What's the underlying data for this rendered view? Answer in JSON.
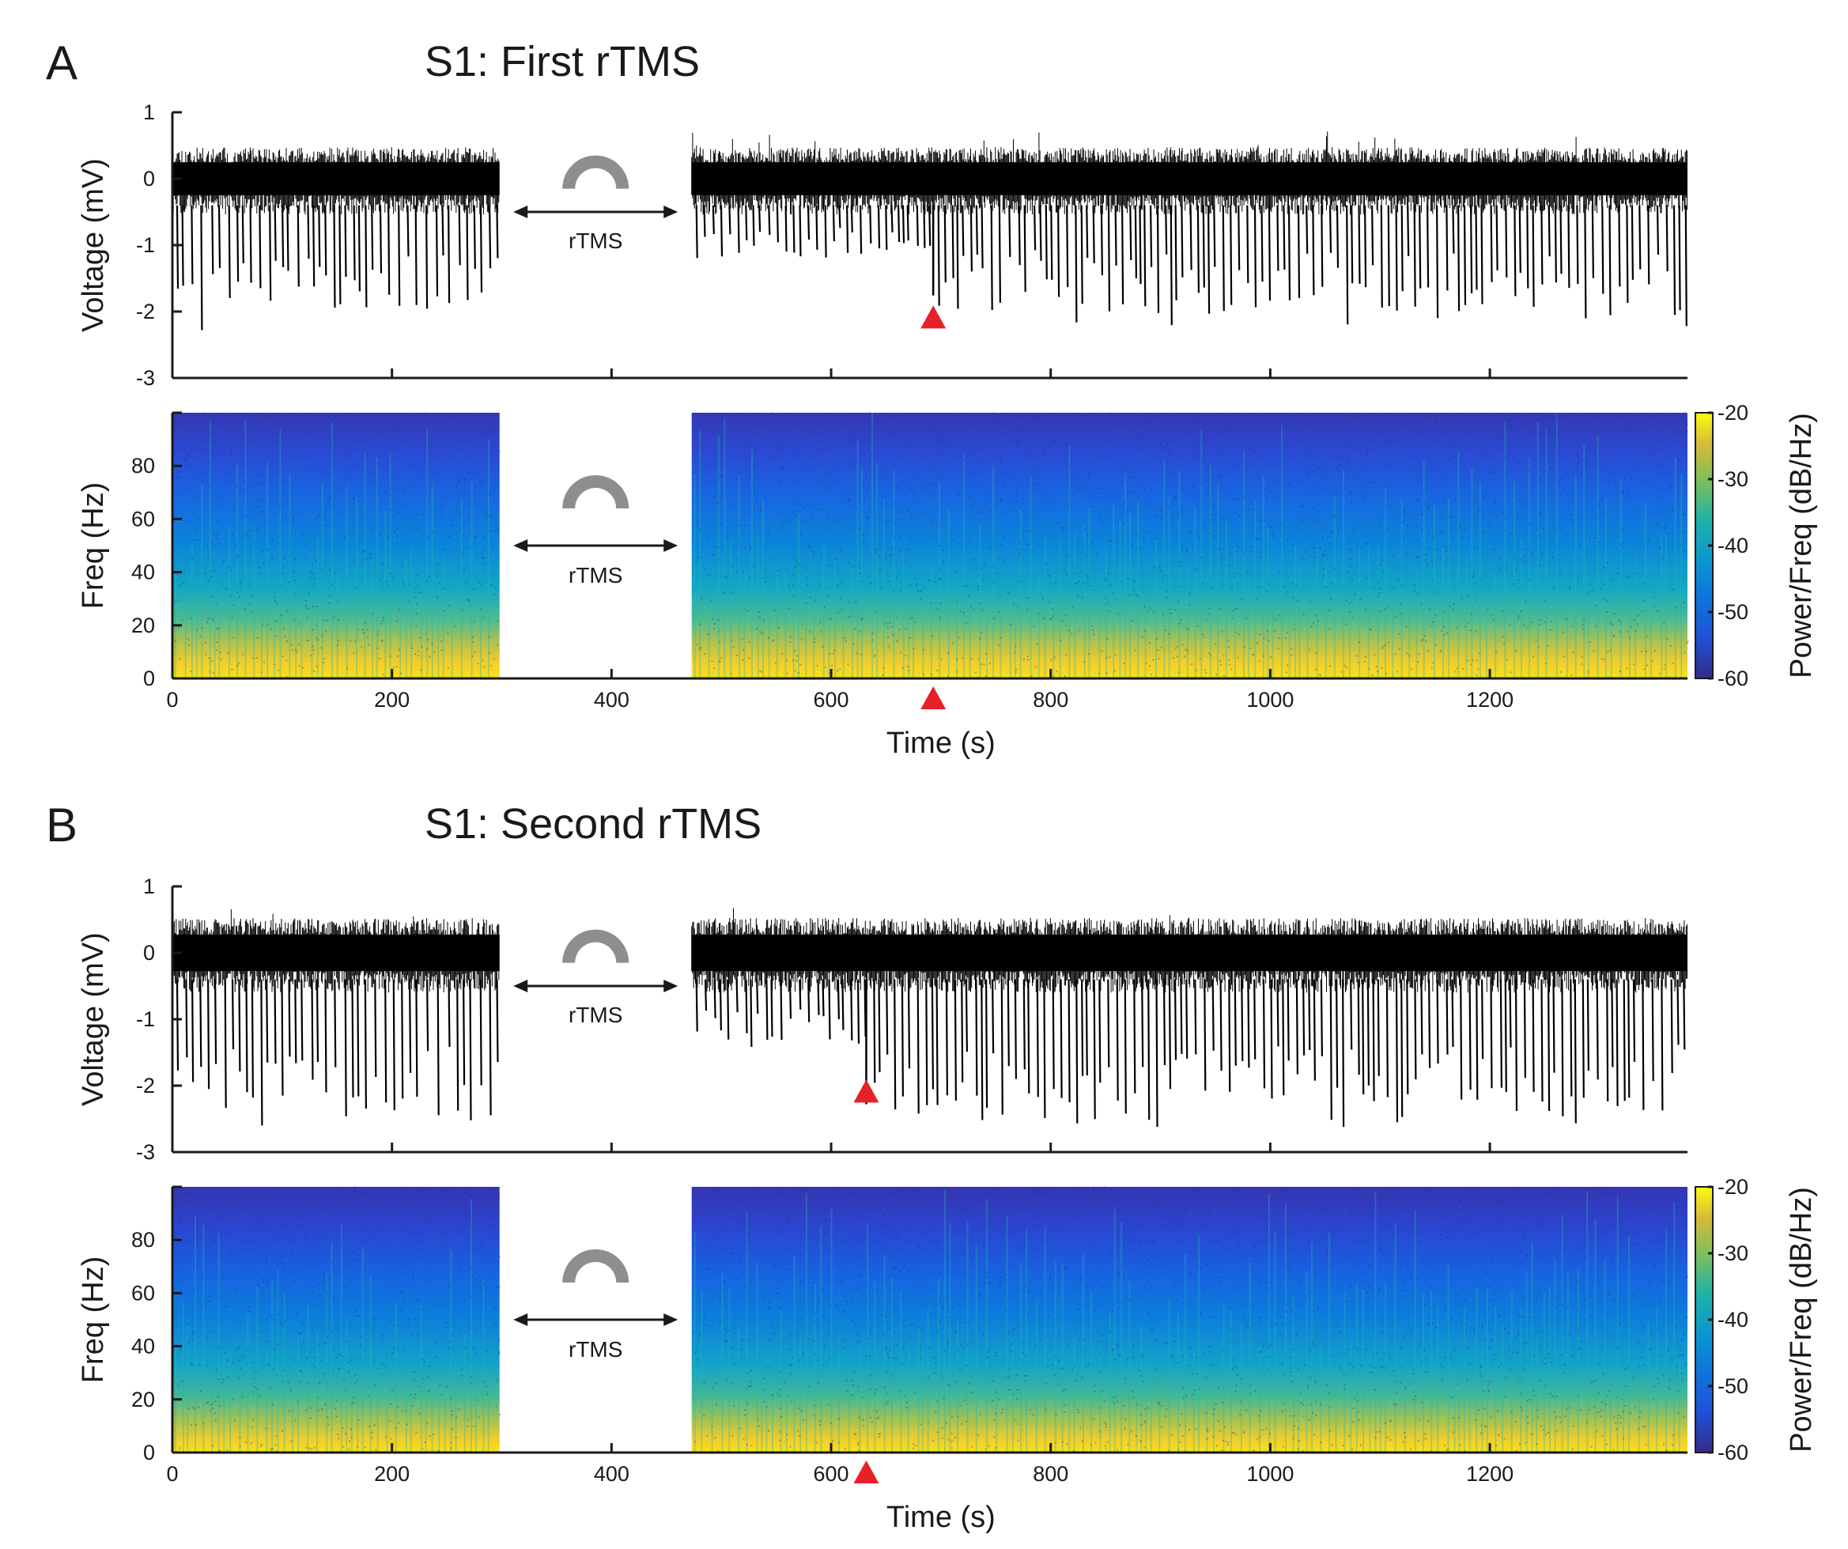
{
  "figure": {
    "panels": [
      {
        "letter": "A",
        "title": "S1: First rTMS",
        "marker_time": 693,
        "rtms_label": "rTMS"
      },
      {
        "letter": "B",
        "title": "S1: Second rTMS",
        "marker_time": 632,
        "rtms_label": "rTMS"
      }
    ]
  },
  "chart_data": [
    {
      "type": "line",
      "panel": "A",
      "ylabel": "Voltage (mV)",
      "ylim": [
        -3,
        1
      ],
      "yticks": [
        -3,
        -2,
        -1,
        0,
        1
      ],
      "xlim": [
        0,
        1380
      ],
      "xticks": [
        200,
        400,
        600,
        800,
        1000,
        1200
      ],
      "segments": [
        [
          0,
          298
        ],
        [
          473,
          1380
        ]
      ],
      "baseline_band": [
        -0.45,
        0.45
      ],
      "spike_min": [
        -1.85,
        -2.35
      ],
      "marker_x": 693,
      "marker_symbol": "red-triangle"
    },
    {
      "type": "heatmap",
      "panel": "A",
      "ylabel": "Freq (Hz)",
      "xlabel": "Time (s)",
      "xlim": [
        0,
        1380
      ],
      "ylim": [
        0,
        100
      ],
      "yticks": [
        0,
        20,
        40,
        60,
        80
      ],
      "xticks": [
        0,
        200,
        400,
        600,
        800,
        1000,
        1200
      ],
      "colorbar": {
        "label": "Power/Freq (dB/Hz)",
        "range": [
          -60,
          -20
        ],
        "ticks": [
          -20,
          -30,
          -40,
          -50,
          -60
        ],
        "colormap": "parula"
      },
      "segments": [
        [
          0,
          298
        ],
        [
          473,
          1380
        ]
      ],
      "marker_x": 693,
      "marker_symbol": "red-triangle"
    },
    {
      "type": "line",
      "panel": "B",
      "ylabel": "Voltage (mV)",
      "ylim": [
        -3,
        1
      ],
      "yticks": [
        -3,
        -2,
        -1,
        0,
        1
      ],
      "xlim": [
        0,
        1380
      ],
      "xticks": [
        200,
        400,
        600,
        800,
        1000,
        1200
      ],
      "segments": [
        [
          0,
          298
        ],
        [
          473,
          1380
        ]
      ],
      "baseline_band": [
        -0.5,
        0.5
      ],
      "spike_min": [
        -2.4,
        -2.65
      ],
      "marker_x": 632,
      "marker_symbol": "red-triangle"
    },
    {
      "type": "heatmap",
      "panel": "B",
      "ylabel": "Freq (Hz)",
      "xlabel": "Time (s)",
      "xlim": [
        0,
        1380
      ],
      "ylim": [
        0,
        100
      ],
      "yticks": [
        0,
        20,
        40,
        60,
        80
      ],
      "xticks": [
        0,
        200,
        400,
        600,
        800,
        1000,
        1200
      ],
      "colorbar": {
        "label": "Power/Freq (dB/Hz)",
        "range": [
          -60,
          -20
        ],
        "ticks": [
          -20,
          -30,
          -40,
          -50,
          -60
        ],
        "colormap": "parula"
      },
      "segments": [
        [
          0,
          298
        ],
        [
          473,
          1380
        ]
      ],
      "marker_x": 632,
      "marker_symbol": "red-triangle"
    }
  ]
}
